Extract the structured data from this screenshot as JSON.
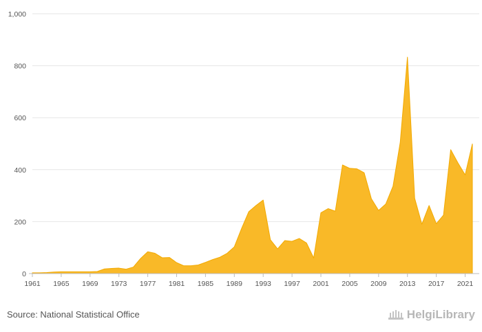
{
  "chart_data": {
    "type": "area",
    "title": "",
    "xlabel": "",
    "ylabel": "",
    "x": [
      1961,
      1962,
      1963,
      1964,
      1965,
      1966,
      1967,
      1968,
      1969,
      1970,
      1971,
      1972,
      1973,
      1974,
      1975,
      1976,
      1977,
      1978,
      1979,
      1980,
      1981,
      1982,
      1983,
      1984,
      1985,
      1986,
      1987,
      1988,
      1989,
      1990,
      1991,
      1992,
      1993,
      1994,
      1995,
      1996,
      1997,
      1998,
      1999,
      2000,
      2001,
      2002,
      2003,
      2004,
      2005,
      2006,
      2007,
      2008,
      2009,
      2010,
      2011,
      2012,
      2013,
      2014,
      2015,
      2016,
      2017,
      2018,
      2019,
      2020,
      2021,
      2022
    ],
    "values": [
      3,
      3,
      4,
      6,
      7,
      7,
      7,
      7,
      7,
      8,
      18,
      20,
      21,
      17,
      25,
      58,
      84,
      78,
      61,
      62,
      42,
      30,
      30,
      33,
      43,
      54,
      63,
      78,
      103,
      173,
      238,
      262,
      283,
      130,
      95,
      127,
      124,
      135,
      118,
      60,
      234,
      250,
      240,
      418,
      405,
      403,
      388,
      288,
      243,
      268,
      336,
      505,
      833,
      290,
      190,
      262,
      192,
      225,
      477,
      426,
      380,
      499
    ],
    "xticks": [
      "1961",
      "1965",
      "1969",
      "1973",
      "1977",
      "1981",
      "1985",
      "1989",
      "1993",
      "1997",
      "2001",
      "2005",
      "2009",
      "2013",
      "2017",
      "2021"
    ],
    "yticks": [
      "0",
      "200",
      "400",
      "600",
      "800",
      "1,000"
    ],
    "ylim": [
      0,
      1000
    ],
    "grid": true,
    "color": "#f9b928",
    "stroke_color": "#f2a900"
  },
  "footer": {
    "source": "Source: National Statistical Office",
    "brand": "HelgiLibrary",
    "brand_icon": "helgi-logo-icon"
  }
}
